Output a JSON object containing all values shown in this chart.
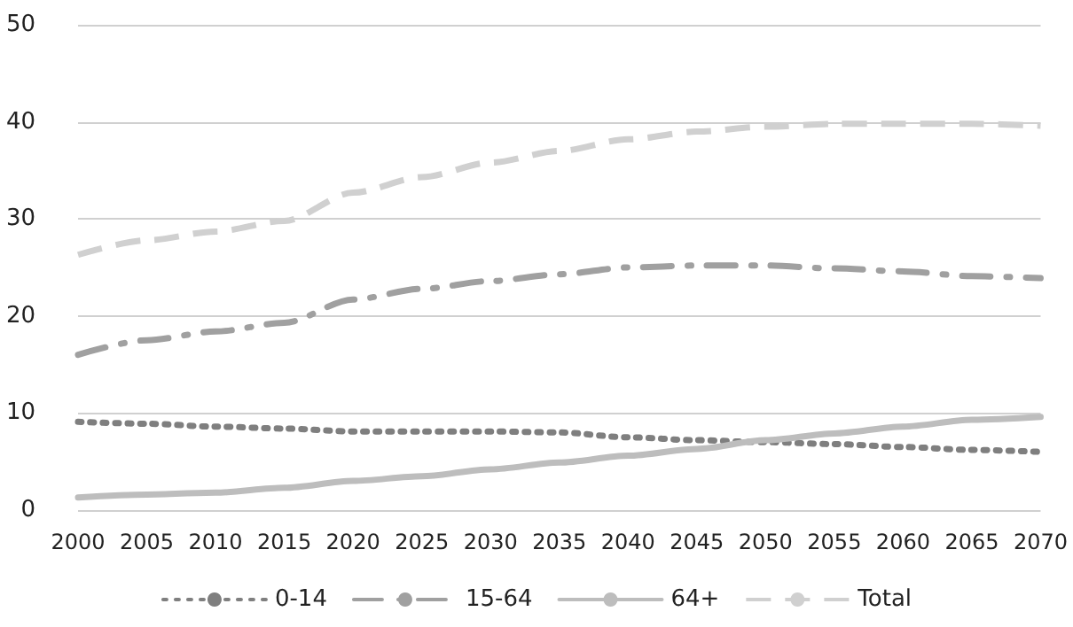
{
  "chart_data": {
    "type": "line",
    "categories": [
      "2000",
      "2005",
      "2010",
      "2015",
      "2020",
      "2025",
      "2030",
      "2035",
      "2040",
      "2045",
      "2050",
      "2055",
      "2060",
      "2065",
      "2070"
    ],
    "series": [
      {
        "name": "0-14",
        "color": "#7f7f7f",
        "line_style": "dotted",
        "values": [
          9.1,
          8.9,
          8.6,
          8.4,
          8.1,
          8.1,
          8.1,
          8.0,
          7.5,
          7.2,
          7.0,
          6.8,
          6.5,
          6.2,
          6.0
        ]
      },
      {
        "name": "15-64",
        "color": "#a0a0a0",
        "line_style": "dashdot",
        "values": [
          16.0,
          17.5,
          18.4,
          19.3,
          21.7,
          22.8,
          23.6,
          24.3,
          25.0,
          25.2,
          25.2,
          24.9,
          24.6,
          24.1,
          23.9
        ]
      },
      {
        "name": "64+",
        "color": "#bdbdbd",
        "line_style": "solid",
        "values": [
          1.3,
          1.6,
          1.8,
          2.3,
          3.0,
          3.5,
          4.2,
          4.9,
          5.6,
          6.3,
          7.2,
          7.9,
          8.6,
          9.3,
          9.6
        ]
      },
      {
        "name": "Total",
        "color": "#d0d0d0",
        "line_style": "dashed",
        "values": [
          26.3,
          27.8,
          28.7,
          29.8,
          32.7,
          34.3,
          35.8,
          37.0,
          38.2,
          39.0,
          39.5,
          39.8,
          39.8,
          39.8,
          39.6
        ]
      }
    ],
    "ylim": [
      0,
      50
    ],
    "yticks": [
      0,
      10,
      20,
      30,
      40,
      50
    ],
    "grid": "y",
    "legend": "bottom",
    "marker": "none"
  }
}
